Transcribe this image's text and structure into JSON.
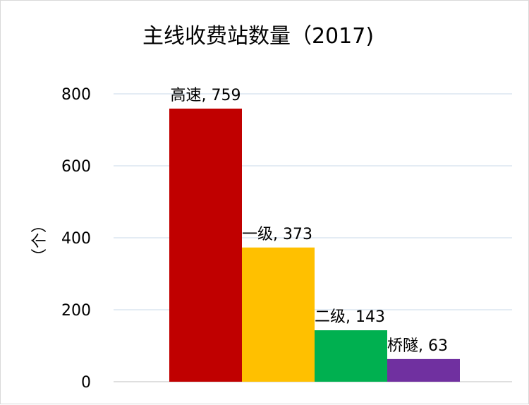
{
  "chart_data": {
    "type": "bar",
    "title": "主线收费站数量（2017)",
    "ylabel": "（个）",
    "xlabel": "",
    "categories": [
      "高速",
      "一级",
      "二级",
      "桥隧"
    ],
    "values": [
      759,
      373,
      143,
      63
    ],
    "data_labels": [
      "高速, 759",
      "一级, 373",
      "二级, 143",
      "桥隧, 63"
    ],
    "colors": [
      "#c00000",
      "#ffc000",
      "#00b050",
      "#7030a0"
    ],
    "ylim": [
      0,
      800
    ],
    "yticks": [
      0,
      200,
      400,
      600,
      800
    ],
    "ytick_labels": [
      "0",
      "200",
      "400",
      "600",
      "800"
    ],
    "grid": true,
    "legend": "none"
  }
}
